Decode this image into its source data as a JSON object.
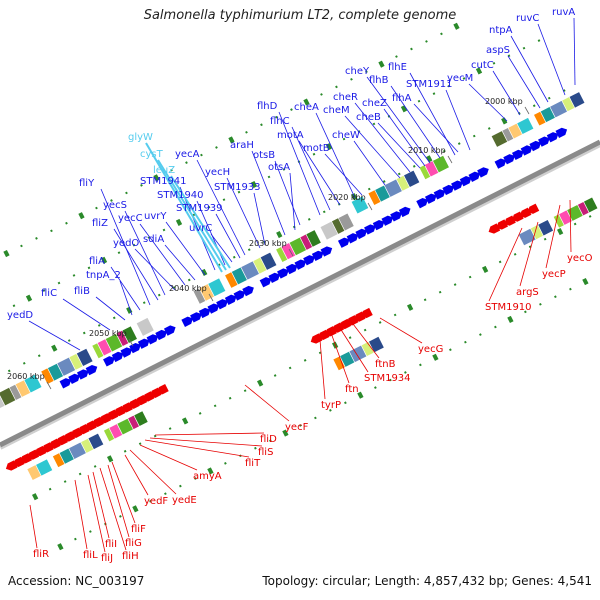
{
  "title": "Salmonella typhimurium LT2, complete genome",
  "footer": {
    "accession": "Accession: NC_003197",
    "summary": "Topology: circular; Length: 4,857,432 bp; Genes: 4,541"
  },
  "colors": {
    "forward_label": "#1a1ae6",
    "reverse_label": "#e60000",
    "rna_label": "#55ccee",
    "backbone": "#8a8a8a",
    "forward_arrow": "#0000ee",
    "reverse_arrow": "#ee0000",
    "tick": "#2a8a2a"
  },
  "scale_labels": [
    "2000 kbp",
    "2010 kbp",
    "2020 kbp",
    "2030 kbp",
    "2040 kbp",
    "2050 kbp",
    "2060 kbp"
  ],
  "forward_genes": [
    "ruvA",
    "ruvC",
    "ntpA",
    "aspS",
    "cutC",
    "yecM",
    "STM1911",
    "flhE",
    "flhA",
    "flhB",
    "cheY",
    "cheZ",
    "cheB",
    "cheR",
    "cheM",
    "cheW",
    "motB",
    "cheA",
    "motA",
    "flhC",
    "flhD",
    "otsB",
    "otsA",
    "araH",
    "STM1933",
    "yecH",
    "yecA",
    "STM1939",
    "uvrC",
    "STM1940",
    "STM1941",
    "uvrY",
    "sdiA",
    "yecC",
    "yedO",
    "yecS",
    "fliZ",
    "fliY",
    "fliA",
    "tnpA_2",
    "fliB",
    "fliC",
    "yedD"
  ],
  "rna_genes": [
    "glyW",
    "cysT",
    "leuZ"
  ],
  "reverse_genes": [
    "yecO",
    "yecP",
    "argS",
    "STM1910",
    "yecG",
    "ftnB",
    "STM1934",
    "ftn",
    "tyrP",
    "yecF",
    "fliD",
    "fliS",
    "fliT",
    "amyA",
    "yedE",
    "yedF",
    "fliF",
    "fliG",
    "fliH",
    "fliI",
    "fliJ",
    "fliL",
    "fliR"
  ]
}
